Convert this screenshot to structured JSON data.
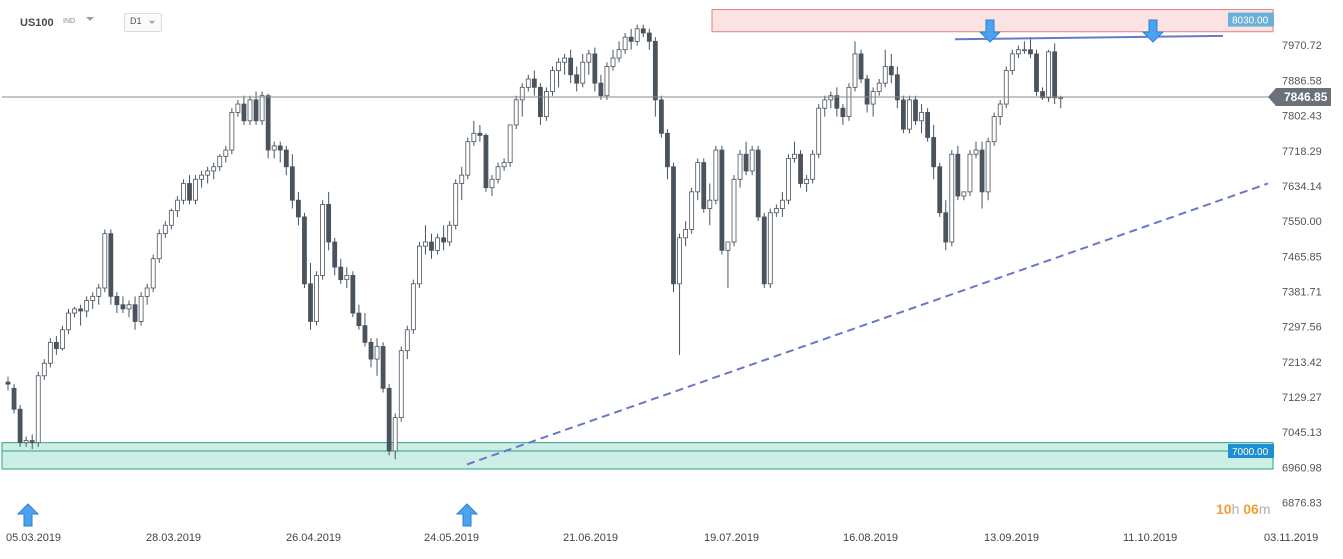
{
  "header": {
    "symbol": "US100",
    "symbol_type": "IND",
    "timeframe": "D1"
  },
  "countdown": {
    "hours": "10",
    "hour_unit": "h",
    "minutes": "06",
    "minute_unit": "m"
  },
  "colors": {
    "bull": "#ffffff",
    "bear": "#4a545e",
    "wick": "#4a545e",
    "trendline": "#6a78c8",
    "resistance_fill": "#fbe3e3",
    "resistance_border": "#e08080",
    "support_fill": "#cdeee6",
    "support_border": "#29a386",
    "arrow": "#4aa3f0",
    "price_tag": "#6a7178",
    "resistance_tag": "#6ab0d8",
    "support_tag": "#1e8fd0"
  },
  "chart_data": {
    "type": "candlestick",
    "title": "US100",
    "ylim": [
      6835,
      8055
    ],
    "y_ticks": [
      "8030.00",
      "7970.72",
      "7886.58",
      "7802.43",
      "7718.29",
      "7634.14",
      "7550.00",
      "7465.85",
      "7381.71",
      "7297.56",
      "7213.42",
      "7129.27",
      "7045.13",
      "6960.98",
      "6876.83"
    ],
    "x_labels": [
      "05.03.2019",
      "28.03.2019",
      "26.04.2019",
      "24.05.2019",
      "21.06.2019",
      "19.07.2019",
      "16.08.2019",
      "13.09.2019",
      "11.10.2019",
      "03.11.2019"
    ],
    "current_price": "7846.85",
    "resistance_label": "8030.00",
    "support_label": "7000.00",
    "resistance_zone": [
      8003,
      8056
    ],
    "support_zone": [
      6957,
      7020
    ],
    "candles": [
      [
        7165,
        7178,
        7145,
        7160
      ],
      [
        7150,
        7160,
        7090,
        7100
      ],
      [
        7100,
        7110,
        7010,
        7020
      ],
      [
        7020,
        7035,
        7010,
        7025
      ],
      [
        7025,
        7040,
        7005,
        7020
      ],
      [
        7020,
        7190,
        7010,
        7180
      ],
      [
        7180,
        7220,
        7170,
        7210
      ],
      [
        7210,
        7270,
        7200,
        7260
      ],
      [
        7260,
        7275,
        7230,
        7245
      ],
      [
        7245,
        7300,
        7240,
        7290
      ],
      [
        7290,
        7340,
        7280,
        7330
      ],
      [
        7330,
        7345,
        7320,
        7340
      ],
      [
        7340,
        7350,
        7300,
        7335
      ],
      [
        7335,
        7370,
        7320,
        7360
      ],
      [
        7360,
        7380,
        7340,
        7370
      ],
      [
        7370,
        7400,
        7350,
        7390
      ],
      [
        7390,
        7530,
        7380,
        7520
      ],
      [
        7520,
        7530,
        7350,
        7370
      ],
      [
        7370,
        7380,
        7330,
        7350
      ],
      [
        7350,
        7370,
        7330,
        7340
      ],
      [
        7340,
        7360,
        7320,
        7350
      ],
      [
        7350,
        7370,
        7290,
        7310
      ],
      [
        7310,
        7380,
        7300,
        7370
      ],
      [
        7370,
        7400,
        7350,
        7390
      ],
      [
        7390,
        7470,
        7380,
        7460
      ],
      [
        7460,
        7530,
        7450,
        7520
      ],
      [
        7520,
        7550,
        7510,
        7540
      ],
      [
        7540,
        7580,
        7530,
        7575
      ],
      [
        7575,
        7610,
        7560,
        7600
      ],
      [
        7600,
        7650,
        7590,
        7640
      ],
      [
        7640,
        7660,
        7590,
        7600
      ],
      [
        7600,
        7660,
        7590,
        7650
      ],
      [
        7650,
        7670,
        7630,
        7660
      ],
      [
        7660,
        7680,
        7640,
        7670
      ],
      [
        7670,
        7690,
        7650,
        7680
      ],
      [
        7680,
        7710,
        7670,
        7705
      ],
      [
        7705,
        7730,
        7690,
        7720
      ],
      [
        7720,
        7820,
        7710,
        7810
      ],
      [
        7810,
        7840,
        7800,
        7830
      ],
      [
        7830,
        7850,
        7780,
        7790
      ],
      [
        7790,
        7850,
        7780,
        7840
      ],
      [
        7840,
        7860,
        7780,
        7790
      ],
      [
        7790,
        7860,
        7780,
        7850
      ],
      [
        7850,
        7855,
        7700,
        7720
      ],
      [
        7720,
        7740,
        7700,
        7730
      ],
      [
        7730,
        7740,
        7690,
        7720
      ],
      [
        7720,
        7730,
        7660,
        7680
      ],
      [
        7680,
        7710,
        7580,
        7600
      ],
      [
        7600,
        7620,
        7540,
        7560
      ],
      [
        7560,
        7570,
        7390,
        7400
      ],
      [
        7400,
        7450,
        7290,
        7310
      ],
      [
        7310,
        7430,
        7300,
        7420
      ],
      [
        7420,
        7600,
        7410,
        7590
      ],
      [
        7590,
        7620,
        7480,
        7500
      ],
      [
        7500,
        7510,
        7420,
        7440
      ],
      [
        7440,
        7460,
        7400,
        7410
      ],
      [
        7410,
        7440,
        7390,
        7420
      ],
      [
        7420,
        7430,
        7320,
        7330
      ],
      [
        7330,
        7350,
        7290,
        7300
      ],
      [
        7300,
        7330,
        7250,
        7260
      ],
      [
        7260,
        7270,
        7200,
        7220
      ],
      [
        7220,
        7270,
        7180,
        7250
      ],
      [
        7250,
        7260,
        7140,
        7150
      ],
      [
        7150,
        7160,
        6990,
        7000
      ],
      [
        7000,
        7090,
        6980,
        7080
      ],
      [
        7080,
        7250,
        7070,
        7240
      ],
      [
        7240,
        7300,
        7220,
        7290
      ],
      [
        7290,
        7410,
        7280,
        7400
      ],
      [
        7400,
        7500,
        7390,
        7490
      ],
      [
        7490,
        7540,
        7470,
        7500
      ],
      [
        7500,
        7520,
        7460,
        7480
      ],
      [
        7480,
        7520,
        7470,
        7510
      ],
      [
        7510,
        7540,
        7480,
        7500
      ],
      [
        7500,
        7550,
        7490,
        7540
      ],
      [
        7540,
        7650,
        7530,
        7640
      ],
      [
        7640,
        7680,
        7600,
        7660
      ],
      [
        7660,
        7750,
        7650,
        7740
      ],
      [
        7740,
        7790,
        7730,
        7760
      ],
      [
        7760,
        7780,
        7740,
        7755
      ],
      [
        7755,
        7760,
        7620,
        7630
      ],
      [
        7630,
        7660,
        7610,
        7650
      ],
      [
        7650,
        7690,
        7640,
        7680
      ],
      [
        7680,
        7700,
        7670,
        7690
      ],
      [
        7690,
        7780,
        7680,
        7780
      ],
      [
        7780,
        7850,
        7770,
        7840
      ],
      [
        7840,
        7880,
        7800,
        7870
      ],
      [
        7870,
        7900,
        7860,
        7890
      ],
      [
        7890,
        7910,
        7850,
        7870
      ],
      [
        7870,
        7880,
        7780,
        7800
      ],
      [
        7800,
        7870,
        7790,
        7860
      ],
      [
        7860,
        7920,
        7850,
        7910
      ],
      [
        7910,
        7940,
        7870,
        7930
      ],
      [
        7930,
        7950,
        7900,
        7940
      ],
      [
        7940,
        7960,
        7880,
        7900
      ],
      [
        7900,
        7920,
        7860,
        7880
      ],
      [
        7880,
        7950,
        7870,
        7930
      ],
      [
        7930,
        7960,
        7900,
        7950
      ],
      [
        7950,
        7965,
        7860,
        7880
      ],
      [
        7880,
        7900,
        7840,
        7850
      ],
      [
        7850,
        7930,
        7840,
        7920
      ],
      [
        7920,
        7960,
        7910,
        7940
      ],
      [
        7940,
        7980,
        7930,
        7960
      ],
      [
        7960,
        8000,
        7950,
        7990
      ],
      [
        7990,
        8010,
        7960,
        7980
      ],
      [
        7980,
        8020,
        7970,
        8010
      ],
      [
        8010,
        8020,
        7990,
        8000
      ],
      [
        8000,
        8010,
        7960,
        7980
      ],
      [
        7980,
        7990,
        7800,
        7840
      ],
      [
        7840,
        7850,
        7750,
        7760
      ],
      [
        7760,
        7770,
        7650,
        7680
      ],
      [
        7680,
        7690,
        7380,
        7400
      ],
      [
        7400,
        7520,
        7230,
        7510
      ],
      [
        7510,
        7550,
        7490,
        7530
      ],
      [
        7530,
        7630,
        7520,
        7620
      ],
      [
        7620,
        7700,
        7600,
        7690
      ],
      [
        7690,
        7700,
        7570,
        7580
      ],
      [
        7580,
        7640,
        7540,
        7600
      ],
      [
        7600,
        7730,
        7590,
        7720
      ],
      [
        7720,
        7730,
        7470,
        7480
      ],
      [
        7480,
        7500,
        7390,
        7500
      ],
      [
        7500,
        7660,
        7490,
        7650
      ],
      [
        7650,
        7720,
        7630,
        7710
      ],
      [
        7710,
        7740,
        7660,
        7670
      ],
      [
        7670,
        7730,
        7660,
        7720
      ],
      [
        7720,
        7730,
        7550,
        7560
      ],
      [
        7560,
        7570,
        7390,
        7400
      ],
      [
        7400,
        7580,
        7390,
        7570
      ],
      [
        7570,
        7590,
        7560,
        7580
      ],
      [
        7580,
        7620,
        7560,
        7600
      ],
      [
        7600,
        7710,
        7590,
        7700
      ],
      [
        7700,
        7740,
        7690,
        7710
      ],
      [
        7710,
        7720,
        7630,
        7640
      ],
      [
        7640,
        7660,
        7620,
        7650
      ],
      [
        7650,
        7720,
        7640,
        7710
      ],
      [
        7710,
        7830,
        7700,
        7820
      ],
      [
        7820,
        7850,
        7800,
        7840
      ],
      [
        7840,
        7860,
        7820,
        7850
      ],
      [
        7850,
        7870,
        7800,
        7820
      ],
      [
        7820,
        7830,
        7780,
        7800
      ],
      [
        7800,
        7880,
        7790,
        7870
      ],
      [
        7870,
        7980,
        7860,
        7950
      ],
      [
        7950,
        7960,
        7880,
        7890
      ],
      [
        7890,
        7900,
        7810,
        7830
      ],
      [
        7830,
        7870,
        7800,
        7860
      ],
      [
        7860,
        7890,
        7850,
        7880
      ],
      [
        7880,
        7960,
        7870,
        7920
      ],
      [
        7920,
        7950,
        7880,
        7900
      ],
      [
        7900,
        7920,
        7820,
        7840
      ],
      [
        7840,
        7850,
        7760,
        7770
      ],
      [
        7770,
        7850,
        7760,
        7840
      ],
      [
        7840,
        7850,
        7780,
        7790
      ],
      [
        7790,
        7830,
        7760,
        7810
      ],
      [
        7810,
        7820,
        7740,
        7750
      ],
      [
        7750,
        7780,
        7650,
        7680
      ],
      [
        7680,
        7690,
        7560,
        7570
      ],
      [
        7570,
        7600,
        7480,
        7500
      ],
      [
        7500,
        7720,
        7490,
        7710
      ],
      [
        7710,
        7730,
        7600,
        7610
      ],
      [
        7610,
        7620,
        7600,
        7620
      ],
      [
        7620,
        7720,
        7610,
        7710
      ],
      [
        7710,
        7740,
        7700,
        7720
      ],
      [
        7720,
        7740,
        7580,
        7620
      ],
      [
        7620,
        7750,
        7600,
        7740
      ],
      [
        7740,
        7810,
        7730,
        7800
      ],
      [
        7800,
        7840,
        7780,
        7830
      ],
      [
        7830,
        7920,
        7820,
        7910
      ],
      [
        7910,
        7960,
        7900,
        7950
      ],
      [
        7950,
        7970,
        7940,
        7960
      ],
      [
        7960,
        7980,
        7950,
        7960
      ],
      [
        7960,
        7990,
        7940,
        7950
      ],
      [
        7950,
        7960,
        7850,
        7860
      ],
      [
        7860,
        7870,
        7840,
        7845
      ],
      [
        7845,
        7960,
        7835,
        7955
      ],
      [
        7955,
        7975,
        7830,
        7845
      ],
      [
        7845,
        7850,
        7820,
        7846
      ]
    ]
  }
}
